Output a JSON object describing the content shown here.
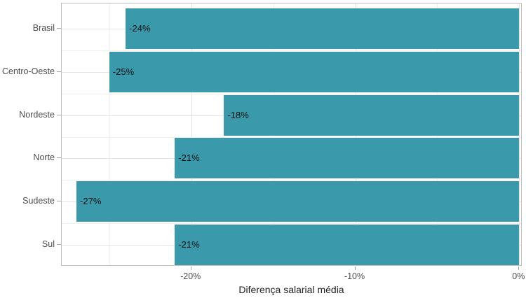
{
  "chart_data": {
    "type": "bar",
    "orientation": "horizontal",
    "title": "",
    "xlabel": "Diferença salarial média",
    "ylabel": "",
    "categories": [
      "Brasil",
      "Centro-Oeste",
      "Nordeste",
      "Norte",
      "Sudeste",
      "Sul"
    ],
    "values": [
      -24,
      -25,
      -18,
      -21,
      -27,
      -21
    ],
    "bar_labels": [
      "-24%",
      "-25%",
      "-18%",
      "-21%",
      "-27%",
      "-21%"
    ],
    "xlim": [
      -27.9,
      0.2
    ],
    "x_ticks": [
      {
        "value": -20,
        "label": "-20%"
      },
      {
        "value": -10,
        "label": "-10%"
      },
      {
        "value": 0,
        "label": "0%"
      }
    ],
    "x_minor_gridlines": [
      -25,
      -15,
      -5
    ],
    "grid": "major and minor, light gray on white",
    "legend": "none",
    "colors": {
      "bar": "#3a99aa",
      "grid_major": "#e3e3e3",
      "grid_minor": "#f0f0f0",
      "panel_border": "#bfbfbf",
      "tick_mark": "#a6a6a6",
      "axis_text": "#4d4d4d",
      "bar_label": "#111111",
      "axis_title": "#222222"
    }
  }
}
